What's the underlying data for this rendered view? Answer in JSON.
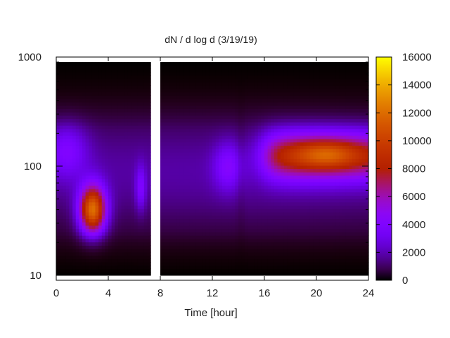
{
  "chart_data": {
    "type": "heatmap",
    "title": "dN / d log d (3/19/19)",
    "xlabel": "Time [hour]",
    "ylabel": "",
    "x_ticks": [
      0,
      4,
      8,
      12,
      16,
      20,
      24
    ],
    "xlim": [
      0,
      24
    ],
    "y_scale": "log",
    "y_ticks": [
      10,
      100,
      1000
    ],
    "ylim": [
      9,
      1000
    ],
    "data_y_range": [
      10,
      900
    ],
    "colorbar": {
      "range": [
        0,
        16000
      ],
      "ticks": [
        0,
        2000,
        4000,
        6000,
        8000,
        10000,
        12000,
        14000,
        16000
      ],
      "colormap": "gnuplot"
    },
    "missing_data_x_hours": [
      7.2,
      7.9
    ],
    "features": [
      {
        "x_hours": [
          1.0,
          3.5
        ],
        "diameter_range": [
          20,
          100
        ],
        "peak_x": 2.8,
        "peak_y": 40,
        "peak_value": 12500
      },
      {
        "x_hours": [
          12.5,
          24
        ],
        "diameter_range": [
          60,
          260
        ],
        "peak_x": 20.8,
        "peak_y": 130,
        "peak_value": 13800
      }
    ]
  }
}
